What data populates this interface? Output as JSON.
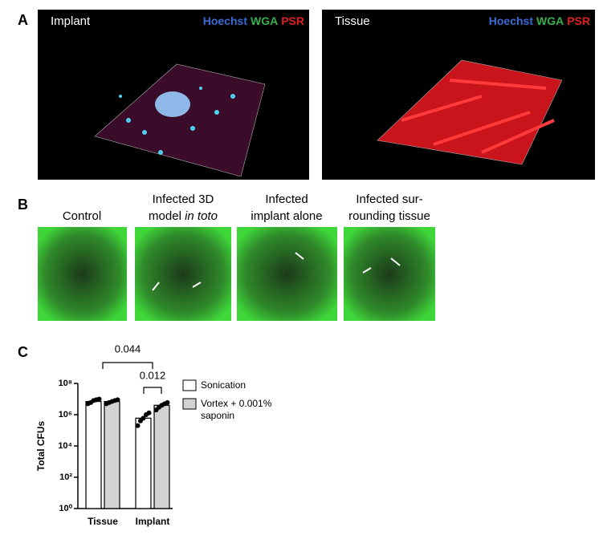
{
  "panel_a": {
    "label": "A",
    "images": [
      {
        "title": "Implant",
        "stains": [
          {
            "text": "Hoechst",
            "color": "#3a6bd6"
          },
          {
            "text": "WGA",
            "color": "#35b04a"
          },
          {
            "text": "PSR",
            "color": "#e02020"
          }
        ]
      },
      {
        "title": "Tissue",
        "stains": [
          {
            "text": "Hoechst",
            "color": "#3a6bd6"
          },
          {
            "text": "WGA",
            "color": "#35b04a"
          },
          {
            "text": "PSR",
            "color": "#e02020"
          }
        ]
      }
    ]
  },
  "panel_b": {
    "label": "B",
    "images": [
      {
        "lines": [
          [
            {
              "text": "Control"
            }
          ]
        ]
      },
      {
        "lines": [
          [
            {
              "text": "Infected 3D"
            }
          ],
          [
            {
              "text": "model "
            },
            {
              "text": "in toto",
              "italic": true
            }
          ]
        ]
      },
      {
        "lines": [
          [
            {
              "text": "Infected"
            }
          ],
          [
            {
              "text": "implant alone"
            }
          ]
        ]
      },
      {
        "lines": [
          [
            {
              "text": "Infected sur-"
            }
          ],
          [
            {
              "text": "rounding tissue"
            }
          ]
        ]
      }
    ]
  },
  "chart_data": {
    "type": "bar",
    "panel_label": "C",
    "y_label": "Total CFUs",
    "categories": [
      "Tissue",
      "Implant"
    ],
    "log_scale": true,
    "ylim": [
      1,
      100000000
    ],
    "yticks": [
      {
        "value": 1,
        "label": "10⁰"
      },
      {
        "value": 100,
        "label": "10²"
      },
      {
        "value": 10000,
        "label": "10⁴"
      },
      {
        "value": 1000000,
        "label": "10⁶"
      },
      {
        "value": 100000000,
        "label": "10⁸"
      }
    ],
    "series": [
      {
        "name": "Sonication",
        "color": "#ffffff",
        "values": [
          7000000,
          600000
        ],
        "points": [
          [
            5000000,
            6000000,
            8000000,
            9000000,
            10000000
          ],
          [
            200000,
            400000,
            600000,
            1000000,
            1300000
          ]
        ]
      },
      {
        "name": "Vortex + 0.001% saponin",
        "color": "#d3d3d3",
        "values": [
          7000000,
          4000000
        ],
        "points": [
          [
            5000000,
            6000000,
            7000000,
            8000000,
            9000000
          ],
          [
            2000000,
            3000000,
            4000000,
            5000000,
            6000000
          ]
        ]
      }
    ],
    "annotations": [
      "0.044",
      "0.012"
    ]
  }
}
